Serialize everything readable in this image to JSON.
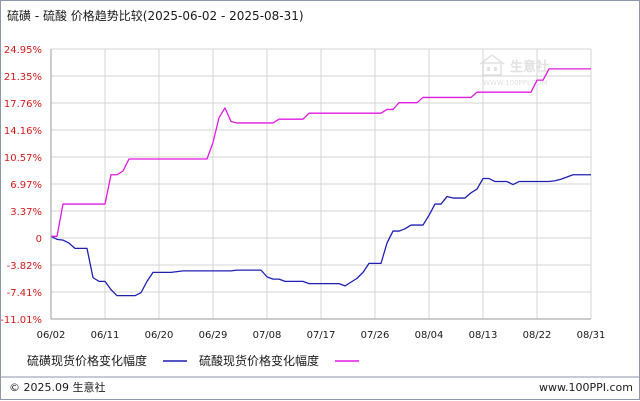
{
  "chart_data": {
    "type": "line",
    "title": "硫磺 - 硫酸 价格趋势比较(2025-06-02 - 2025-08-31)",
    "x": [
      "06/02",
      "06/03",
      "06/04",
      "06/05",
      "06/06",
      "06/07",
      "06/08",
      "06/09",
      "06/10",
      "06/11",
      "06/12",
      "06/13",
      "06/14",
      "06/15",
      "06/16",
      "06/17",
      "06/18",
      "06/19",
      "06/20",
      "06/21",
      "06/22",
      "06/23",
      "06/24",
      "06/25",
      "06/26",
      "06/27",
      "06/28",
      "06/29",
      "06/30",
      "07/01",
      "07/02",
      "07/03",
      "07/04",
      "07/05",
      "07/06",
      "07/07",
      "07/08",
      "07/09",
      "07/10",
      "07/11",
      "07/12",
      "07/13",
      "07/14",
      "07/15",
      "07/16",
      "07/17",
      "07/18",
      "07/19",
      "07/20",
      "07/21",
      "07/22",
      "07/23",
      "07/24",
      "07/25",
      "07/26",
      "07/27",
      "07/28",
      "07/29",
      "07/30",
      "07/31",
      "08/01",
      "08/02",
      "08/03",
      "08/04",
      "08/05",
      "08/06",
      "08/07",
      "08/08",
      "08/09",
      "08/10",
      "08/11",
      "08/12",
      "08/13",
      "08/14",
      "08/15",
      "08/16",
      "08/17",
      "08/18",
      "08/19",
      "08/20",
      "08/21",
      "08/22",
      "08/23",
      "08/24",
      "08/25",
      "08/26",
      "08/27",
      "08/28",
      "08/29",
      "08/30",
      "08/31"
    ],
    "x_tick_labels": [
      "06/02",
      "06/11",
      "06/20",
      "06/29",
      "07/08",
      "07/17",
      "07/26",
      "08/04",
      "08/13",
      "08/22",
      "08/31"
    ],
    "ylim": [
      -11.01,
      24.95
    ],
    "y_tick_labels": [
      "24.95%",
      "21.35%",
      "17.76%",
      "14.16%",
      "10.57%",
      "6.97%",
      "3.37%",
      "0",
      "-3.82%",
      "-7.41%",
      "-11.01%"
    ],
    "grid": true,
    "legend_position": "bottom-left",
    "series": [
      {
        "name": "硫磺现货价格变化幅度",
        "color": "#1f1fb4",
        "values": [
          0,
          -0.4,
          -0.5,
          -0.9,
          -1.6,
          -1.6,
          -1.6,
          -5.5,
          -6.0,
          -6.0,
          -7.1,
          -7.9,
          -7.9,
          -7.9,
          -7.9,
          -7.5,
          -6.0,
          -4.8,
          -4.8,
          -4.8,
          -4.8,
          -4.7,
          -4.6,
          -4.6,
          -4.6,
          -4.6,
          -4.6,
          -4.6,
          -4.6,
          -4.6,
          -4.6,
          -4.5,
          -4.5,
          -4.5,
          -4.5,
          -4.5,
          -5.4,
          -5.7,
          -5.7,
          -6.0,
          -6.0,
          -6.0,
          -6.0,
          -6.3,
          -6.3,
          -6.3,
          -6.3,
          -6.3,
          -6.3,
          -6.6,
          -6.1,
          -5.6,
          -4.8,
          -3.6,
          -3.6,
          -3.6,
          -0.9,
          0.7,
          0.7,
          1.0,
          1.5,
          1.5,
          1.5,
          2.8,
          4.3,
          4.3,
          5.3,
          5.1,
          5.1,
          5.1,
          5.8,
          6.3,
          7.7,
          7.7,
          7.3,
          7.3,
          7.3,
          6.9,
          7.3,
          7.3,
          7.3,
          7.3,
          7.3,
          7.3,
          7.4,
          7.6,
          7.9,
          8.2,
          8.2,
          8.2,
          8.2
        ]
      },
      {
        "name": "硫酸现货价格变化幅度",
        "color": "#e01ae0",
        "values": [
          0,
          0,
          4.3,
          4.3,
          4.3,
          4.3,
          4.3,
          4.3,
          4.3,
          4.3,
          8.2,
          8.2,
          8.7,
          10.3,
          10.3,
          10.3,
          10.3,
          10.3,
          10.3,
          10.3,
          10.3,
          10.3,
          10.3,
          10.3,
          10.3,
          10.3,
          10.3,
          12.5,
          15.8,
          17.1,
          15.3,
          15.1,
          15.1,
          15.1,
          15.1,
          15.1,
          15.1,
          15.1,
          15.6,
          15.6,
          15.6,
          15.6,
          15.6,
          16.4,
          16.4,
          16.4,
          16.4,
          16.4,
          16.4,
          16.4,
          16.4,
          16.4,
          16.4,
          16.4,
          16.4,
          16.4,
          16.9,
          16.9,
          17.8,
          17.8,
          17.8,
          17.8,
          18.5,
          18.5,
          18.5,
          18.5,
          18.5,
          18.5,
          18.5,
          18.5,
          18.5,
          19.2,
          19.2,
          19.2,
          19.2,
          19.2,
          19.2,
          19.2,
          19.2,
          19.2,
          19.2,
          20.8,
          20.8,
          22.3,
          22.3,
          22.3,
          22.3,
          22.3,
          22.3,
          22.3,
          22.3
        ]
      }
    ]
  },
  "watermark": {
    "text": "生意社",
    "url": "WWW.100PPI.COM"
  },
  "footer": {
    "left": "© 2025.09 生意社",
    "right": "www.100PPI.com"
  }
}
